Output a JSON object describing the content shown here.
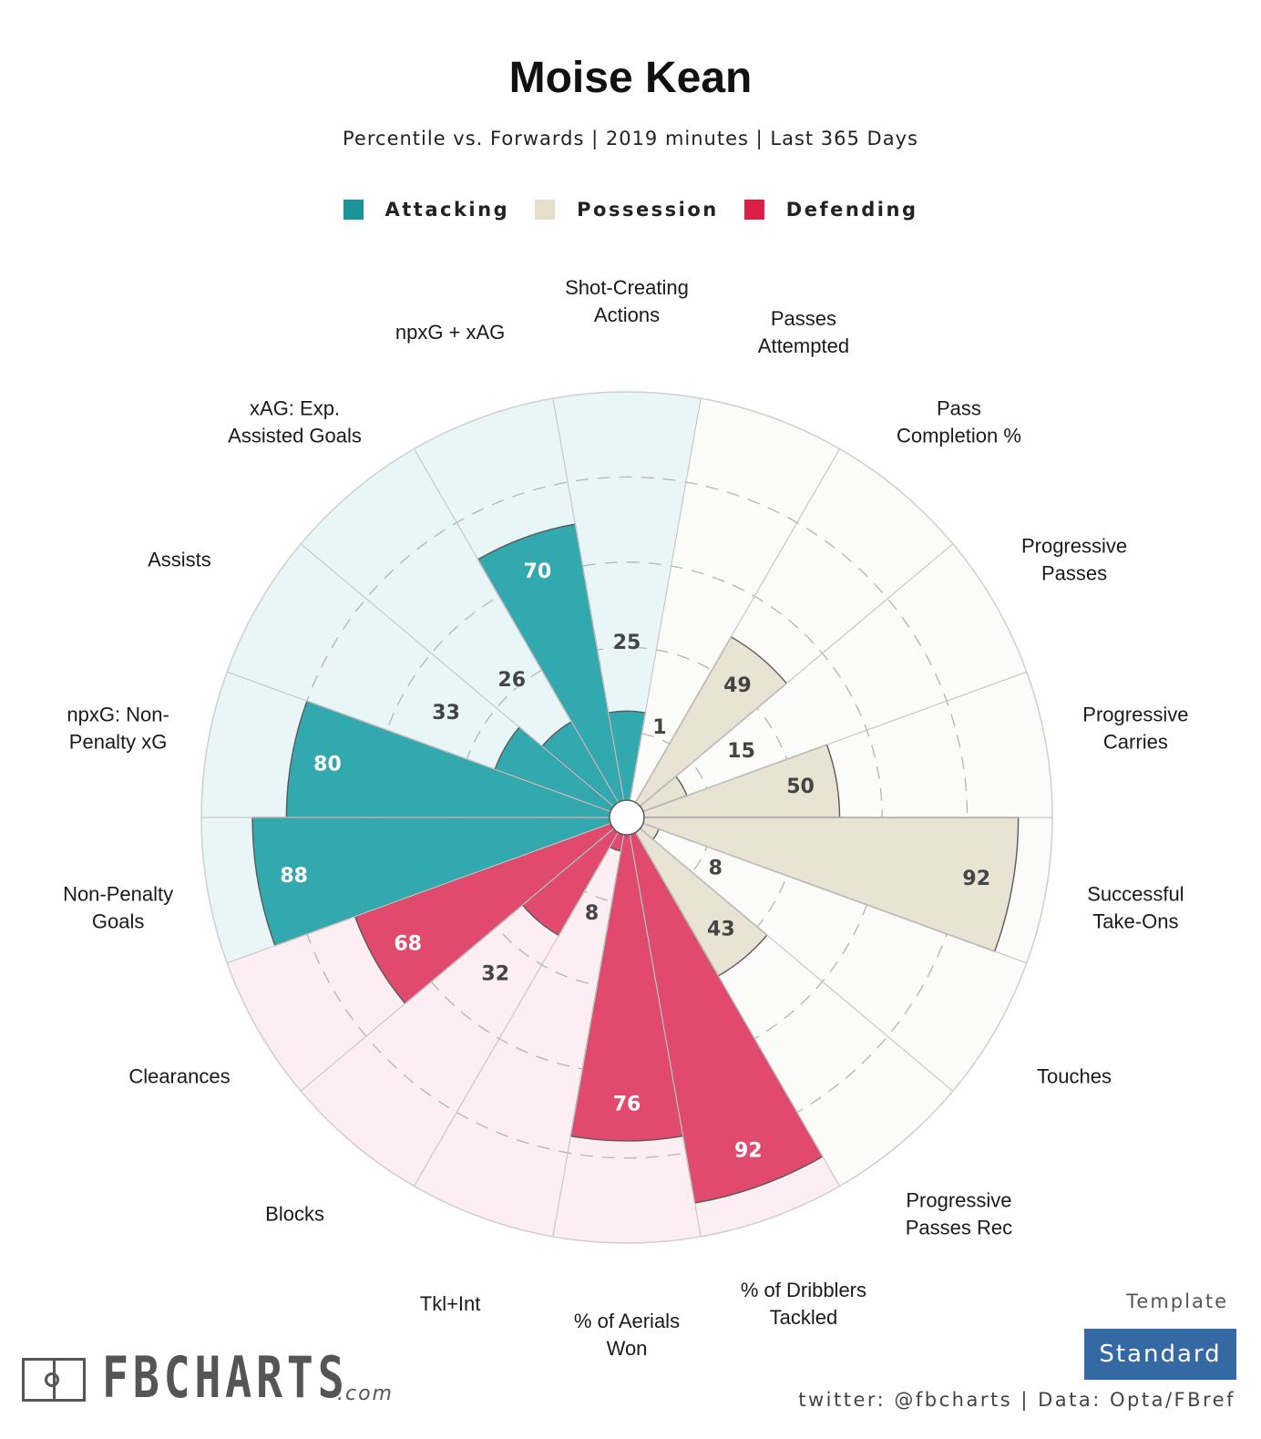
{
  "header": {
    "title": "Moise Kean",
    "subtitle": "Percentile vs. Forwards | 2019 minutes | Last 365 Days"
  },
  "legend": [
    {
      "label": "Attacking",
      "color": "#1A9399"
    },
    {
      "label": "Possession",
      "color": "#E6DEC8"
    },
    {
      "label": "Defending",
      "color": "#DC1E48"
    }
  ],
  "colors": {
    "Attacking": {
      "bar": "#2EA6AD",
      "bg": "#E9F6F7",
      "text": "#ffffff"
    },
    "Possession": {
      "bar": "#E8E2D1",
      "bg": "#FBFBF9",
      "text": "#444444"
    },
    "Defending": {
      "bar": "#E0466A",
      "bg": "#FCEEF2",
      "text": "#ffffff"
    },
    "small_text": "#444444"
  },
  "chart_data": {
    "type": "polar-bar",
    "title": "Moise Kean",
    "subtitle": "Percentile vs. Forwards | 2019 minutes | Last 365 Days",
    "radial_range": [
      0,
      100
    ],
    "gridlines": [
      20,
      40,
      60,
      80
    ],
    "grid": true,
    "legend_position": "top",
    "start": "top",
    "direction": "clockwise",
    "categories": [
      {
        "label": "Shot-Creating\nActions",
        "group": "Attacking",
        "value": 25
      },
      {
        "label": "Passes\nAttempted",
        "group": "Possession",
        "value": 1
      },
      {
        "label": "Pass\nCompletion %",
        "group": "Possession",
        "value": 49
      },
      {
        "label": "Progressive\nPasses",
        "group": "Possession",
        "value": 15
      },
      {
        "label": "Progressive\nCarries",
        "group": "Possession",
        "value": 50
      },
      {
        "label": "Successful\nTake-Ons",
        "group": "Possession",
        "value": 92
      },
      {
        "label": "Touches",
        "group": "Possession",
        "value": 8
      },
      {
        "label": "Progressive\nPasses Rec",
        "group": "Possession",
        "value": 43
      },
      {
        "label": "% of Dribblers\nTackled",
        "group": "Defending",
        "value": 92
      },
      {
        "label": "% of Aerials\nWon",
        "group": "Defending",
        "value": 76
      },
      {
        "label": "Tkl+Int",
        "group": "Defending",
        "value": 8
      },
      {
        "label": "Blocks",
        "group": "Defending",
        "value": 32
      },
      {
        "label": "Clearances",
        "group": "Defending",
        "value": 68
      },
      {
        "label": "Non-Penalty\nGoals",
        "group": "Attacking",
        "value": 88
      },
      {
        "label": "npxG: Non-\nPenalty xG",
        "group": "Attacking",
        "value": 80
      },
      {
        "label": "Assists",
        "group": "Attacking",
        "value": 33
      },
      {
        "label": "xAG: Exp.\nAssisted Goals",
        "group": "Attacking",
        "value": 26
      },
      {
        "label": "npxG + xAG",
        "group": "Attacking",
        "value": 70
      }
    ]
  },
  "branding": {
    "logo_text": "FBCHARTS",
    "logo_suffix": ".com",
    "template_label": "Template",
    "template_value": "Standard",
    "footer": "twitter: @fbcharts | Data: Opta/FBref"
  }
}
